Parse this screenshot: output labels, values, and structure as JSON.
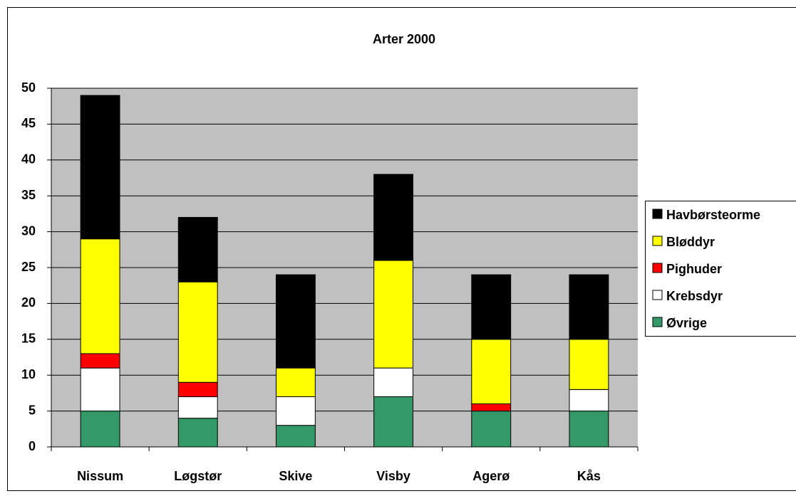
{
  "chart_data": {
    "type": "stacked_bar",
    "title": "Arter  2000",
    "categories": [
      "Nissum",
      "Løgstør",
      "Skive",
      "Visby",
      "Agerø",
      "Kås"
    ],
    "series": [
      {
        "name": "Øvrige",
        "color": "#339966",
        "values": [
          5,
          4,
          3,
          7,
          5,
          5
        ]
      },
      {
        "name": "Krebsdyr",
        "color": "#ffffff",
        "values": [
          6,
          3,
          4,
          4,
          0,
          3
        ]
      },
      {
        "name": "Pighuder",
        "color": "#ff0000",
        "values": [
          2,
          2,
          0,
          0,
          1,
          0
        ]
      },
      {
        "name": "Bløddyr",
        "color": "#ffff00",
        "values": [
          16,
          14,
          4,
          15,
          9,
          7
        ]
      },
      {
        "name": "Havbørsteorme",
        "color": "#000000",
        "values": [
          20,
          9,
          13,
          12,
          9,
          9
        ]
      }
    ],
    "ylim": [
      0,
      50
    ],
    "yticks": [
      0,
      5,
      10,
      15,
      20,
      25,
      30,
      35,
      40,
      45,
      50
    ],
    "grid": true,
    "legend": "right"
  }
}
